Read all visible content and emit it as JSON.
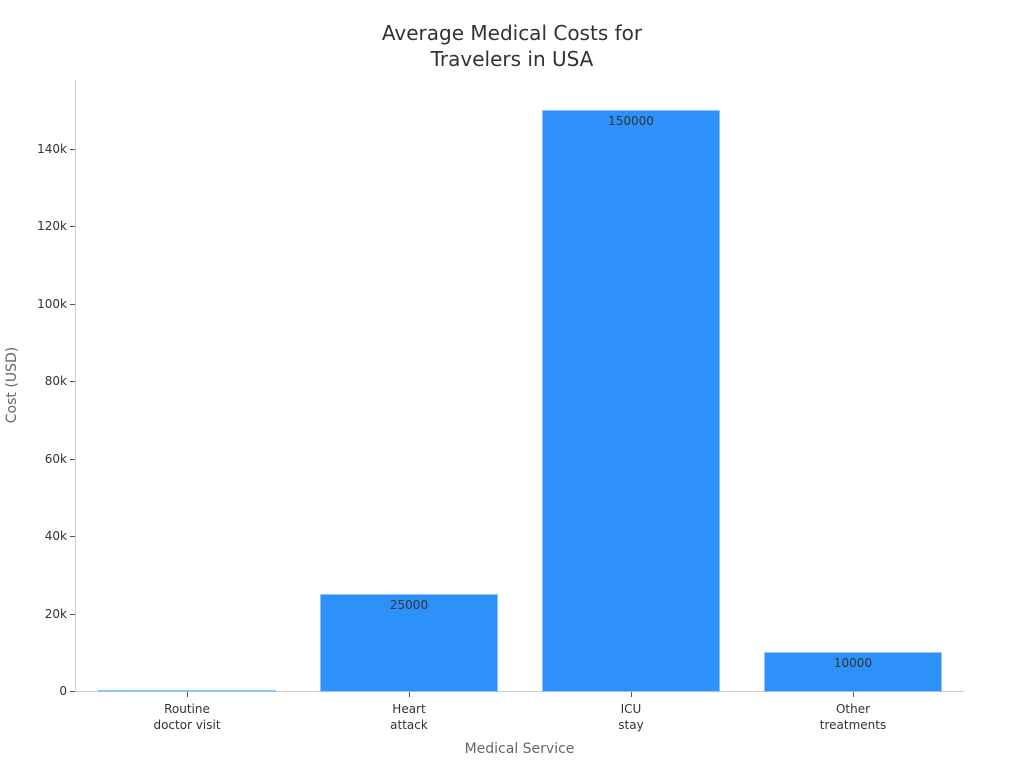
{
  "chart_data": {
    "type": "bar",
    "title": "Average Medical Costs for Travelers in USA",
    "title_lines": [
      "Average Medical Costs for",
      "Travelers in USA"
    ],
    "xlabel": "Medical Service",
    "ylabel": "Cost (USD)",
    "categories": [
      "Routine doctor visit",
      "Heart attack",
      "ICU stay",
      "Other treatments"
    ],
    "category_lines": [
      [
        "Routine",
        "doctor visit"
      ],
      [
        "Heart",
        "attack"
      ],
      [
        "ICU",
        "stay"
      ],
      [
        "Other",
        "treatments"
      ]
    ],
    "values": [
      300,
      25000,
      150000,
      10000
    ],
    "data_labels": [
      "",
      "25000",
      "150000",
      "10000"
    ],
    "ylim": [
      0,
      157000
    ],
    "yticks": [
      0,
      20000,
      40000,
      60000,
      80000,
      100000,
      120000,
      140000
    ],
    "ytick_labels": [
      "0",
      "20k",
      "40k",
      "60k",
      "80k",
      "100k",
      "120k",
      "140k"
    ],
    "grid": false,
    "legend": null,
    "bar_color": "#2e91fa"
  }
}
